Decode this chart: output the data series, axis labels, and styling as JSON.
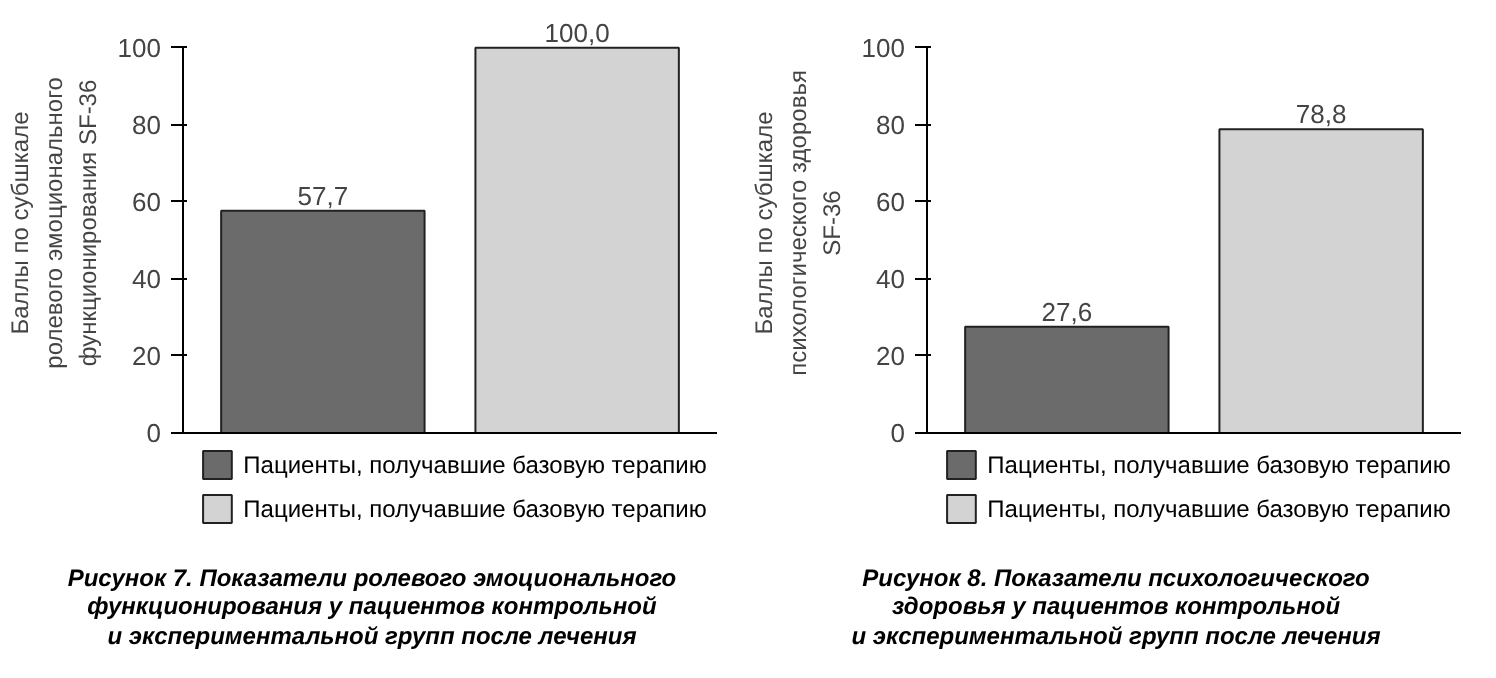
{
  "chart_data": [
    {
      "type": "bar",
      "title": "Рисунок 7. Показатели ролевого эмоционального\nфункционирования у пациентов контрольной\nи экспериментальной групп после лечения",
      "ylabel": "Баллы по субшкале\nролевого эмоционального\nфункционирования SF-36",
      "categories": [
        null,
        null
      ],
      "ylim": [
        0,
        100
      ],
      "yticks": [
        0,
        20,
        40,
        60,
        80,
        100
      ],
      "tick_labels": "y",
      "legend": "bottom",
      "grid": false,
      "series": [
        {
          "name": "Пациенты, получавшие базовую терапию",
          "color": "#6b6b6b",
          "values": [
            57.7,
            null
          ],
          "value_labels": [
            "57,7",
            null
          ]
        },
        {
          "name": "Пациенты, получавшие базовую терапию",
          "color": "#d3d3d3",
          "values": [
            null,
            100.0
          ],
          "value_labels": [
            null,
            "100,0"
          ]
        }
      ]
    },
    {
      "type": "bar",
      "title": "Рисунок 8. Показатели психологического\nздоровья у пациентов контрольной\nи экспериментальной групп после лечения",
      "ylabel": "Баллы по субшкале\nпсихологического здоровья\nSF-36",
      "categories": [
        null,
        null
      ],
      "ylim": [
        0,
        100
      ],
      "yticks": [
        0,
        20,
        40,
        60,
        80,
        100
      ],
      "tick_labels": "y",
      "legend": "bottom",
      "grid": false,
      "series": [
        {
          "name": "Пациенты, получавшие базовую терапию",
          "color": "#6b6b6b",
          "values": [
            27.6,
            null
          ],
          "value_labels": [
            "27,6",
            null
          ]
        },
        {
          "name": "Пациенты, получавшие базовую терапию",
          "color": "#d3d3d3",
          "values": [
            null,
            78.8
          ],
          "value_labels": [
            null,
            "78,8"
          ]
        }
      ]
    }
  ]
}
